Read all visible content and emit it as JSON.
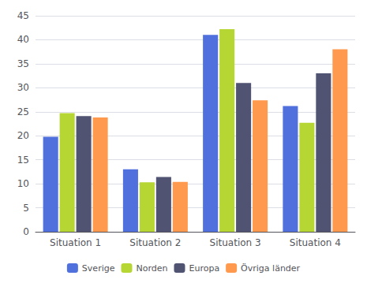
{
  "chart_data": {
    "type": "bar",
    "categories": [
      "Situation 1",
      "Situation 2",
      "Situation 3",
      "Situation 4"
    ],
    "series": [
      {
        "name": "Sverige",
        "values": [
          19.8,
          13.0,
          41.0,
          26.2
        ]
      },
      {
        "name": "Norden",
        "values": [
          24.7,
          10.3,
          42.2,
          22.7
        ]
      },
      {
        "name": "Europa",
        "values": [
          24.1,
          11.4,
          31.0,
          33.0
        ]
      },
      {
        "name": "Övriga länder",
        "values": [
          23.8,
          10.4,
          27.4,
          38.0
        ]
      }
    ],
    "ylim": [
      0,
      45
    ],
    "yticks": [
      0,
      5,
      10,
      15,
      20,
      25,
      30,
      35,
      40,
      45
    ],
    "grid": true,
    "legend": "bottom"
  }
}
